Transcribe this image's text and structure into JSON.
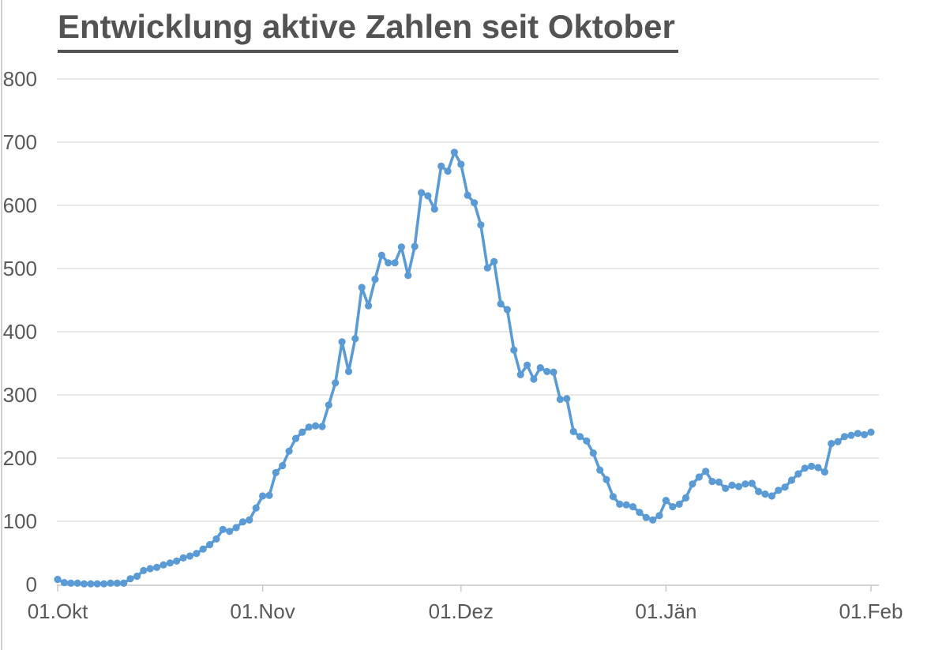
{
  "chart_data": {
    "type": "line",
    "title": "Entwicklung aktive Zahlen seit Oktober",
    "xlabel": "",
    "ylabel": "",
    "x_unit": "day",
    "x_tick_labels": [
      "01.Okt",
      "01.Nov",
      "01.Dez",
      "01.Jän",
      "01.Feb"
    ],
    "x_tick_positions": [
      0,
      31,
      61,
      92,
      123
    ],
    "y_ticks": [
      0,
      100,
      200,
      300,
      400,
      500,
      600,
      700,
      800
    ],
    "ylim": [
      0,
      800
    ],
    "grid": "horizontal",
    "legend": "none",
    "values": [
      8,
      3,
      2,
      2,
      1,
      1,
      1,
      1,
      2,
      2,
      2,
      9,
      13,
      22,
      25,
      27,
      31,
      34,
      37,
      42,
      45,
      49,
      56,
      63,
      72,
      87,
      84,
      90,
      99,
      102,
      121,
      140,
      141,
      177,
      188,
      211,
      231,
      241,
      249,
      251,
      250,
      284,
      319,
      384,
      337,
      389,
      470,
      441,
      483,
      521,
      509,
      509,
      534,
      489,
      535,
      620,
      615,
      594,
      662,
      654,
      684,
      665,
      616,
      604,
      569,
      501,
      511,
      444,
      435,
      371,
      332,
      347,
      325,
      343,
      337,
      336,
      293,
      294,
      242,
      234,
      227,
      208,
      181,
      166,
      139,
      127,
      126,
      123,
      114,
      106,
      102,
      109,
      133,
      123,
      127,
      137,
      159,
      170,
      179,
      163,
      162,
      152,
      157,
      155,
      159,
      160,
      147,
      143,
      140,
      149,
      154,
      165,
      175,
      184,
      187,
      185,
      178,
      223,
      226,
      234,
      236,
      239,
      237,
      241
    ],
    "colors": {
      "line": "#5B9BD5",
      "marker": "#5B9BD5",
      "grid": "#DCDCDC",
      "axis": "#C6C6C6",
      "tick": "#C6C6C6",
      "labels": "#595959",
      "title": "#535353"
    }
  }
}
